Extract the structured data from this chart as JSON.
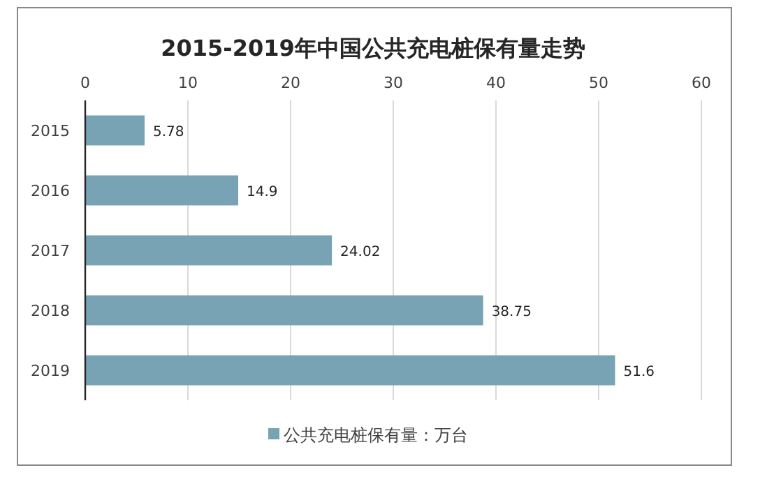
{
  "chart_data": {
    "type": "bar",
    "orientation": "horizontal",
    "title": "2015-2019年中国公共充电桩保有量走势",
    "categories": [
      "2015",
      "2016",
      "2017",
      "2018",
      "2019"
    ],
    "series": [
      {
        "name": "公共充电桩保有量：万台",
        "color": "#77a3b4",
        "values": [
          5.78,
          14.9,
          24.02,
          38.75,
          51.6
        ]
      }
    ],
    "xlim": [
      0,
      60
    ],
    "xticks": [
      0,
      10,
      20,
      30,
      40,
      50,
      60
    ],
    "grid": "x",
    "legend": "bottom",
    "data_labels": true
  }
}
